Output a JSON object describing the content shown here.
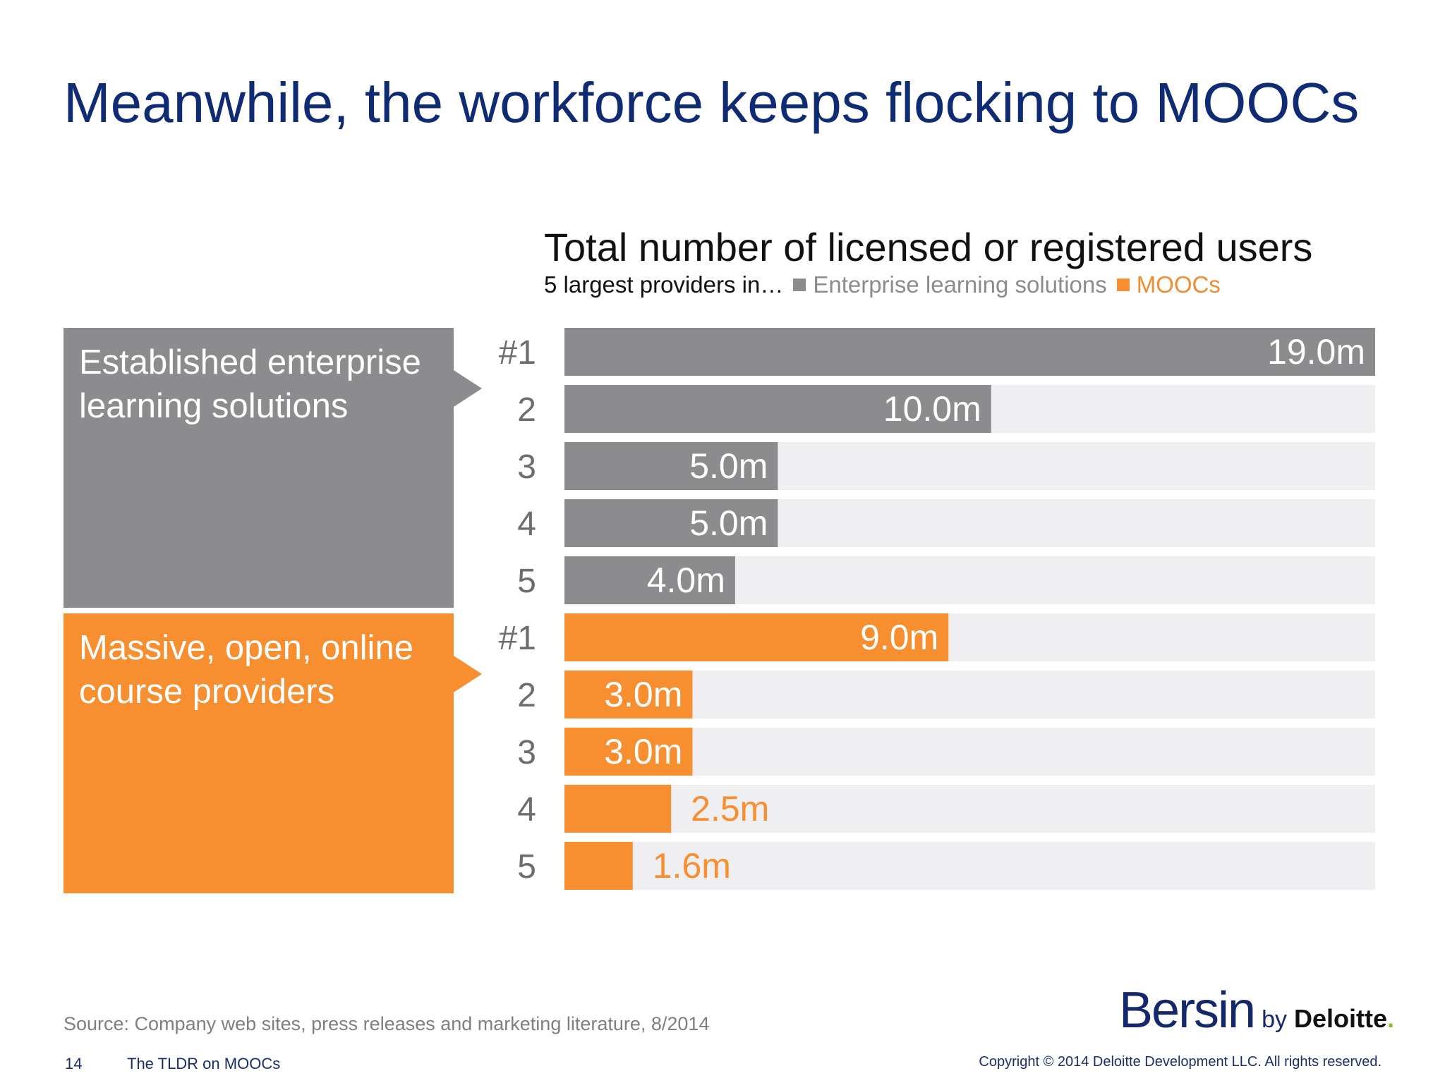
{
  "slide": {
    "title": "Meanwhile, the workforce keeps flocking to MOOCs",
    "source": "Source: Company web sites, press releases and marketing literature, 8/2014",
    "page_number": "14",
    "deck_title": "The TLDR on MOOCs",
    "copyright": "Copyright © 2014 Deloitte Development LLC. All rights reserved.",
    "logo": {
      "bersin": "Bersin",
      "by": "by",
      "deloitte": "Deloitte",
      "dot": "."
    },
    "group_boxes": {
      "enterprise": "Established enterprise learning solutions",
      "moocs": "Massive, open, online course providers"
    }
  },
  "colors": {
    "enterprise": "#8c8b8d",
    "moocs": "#f78e30",
    "track": "#efeff1",
    "title": "#0f2b73"
  },
  "chart_data": {
    "type": "bar",
    "orientation": "horizontal",
    "title": "Total number of licensed or registered users",
    "subtitle": "5 largest providers in…",
    "unit": "m",
    "xlim": [
      0,
      19
    ],
    "legend": [
      {
        "name": "Enterprise learning solutions",
        "color": "#8c8b8d"
      },
      {
        "name": "MOOCs",
        "color": "#f78e30"
      }
    ],
    "series": [
      {
        "name": "Enterprise learning solutions",
        "color": "#8c8b8d",
        "categories": [
          "#1",
          "2",
          "3",
          "4",
          "5"
        ],
        "values": [
          19.0,
          10.0,
          5.0,
          5.0,
          4.0
        ],
        "labels": [
          "19.0m",
          "10.0m",
          "5.0m",
          "5.0m",
          "4.0m"
        ]
      },
      {
        "name": "MOOCs",
        "color": "#f78e30",
        "categories": [
          "#1",
          "2",
          "3",
          "4",
          "5"
        ],
        "values": [
          9.0,
          3.0,
          3.0,
          2.5,
          1.6
        ],
        "labels": [
          "9.0m",
          "3.0m",
          "3.0m",
          "2.5m",
          "1.6m"
        ]
      }
    ]
  }
}
